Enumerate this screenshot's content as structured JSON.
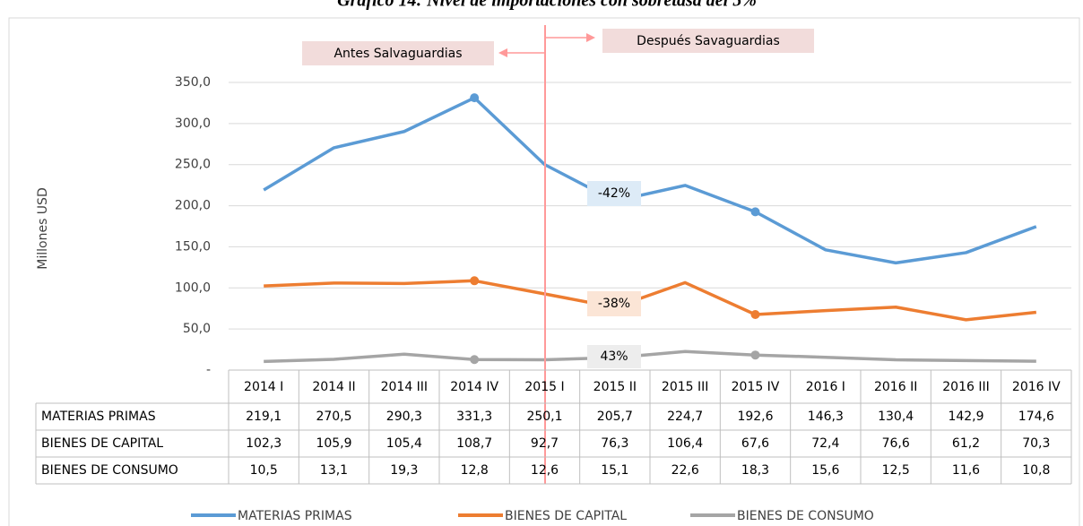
{
  "chart_data": {
    "type": "line",
    "title": "Gráfico 14: Nivel de importaciones con sobretasa del 5%",
    "y_label": "Millones USD",
    "categories": [
      "2014 I",
      "2014 II",
      "2014 III",
      "2014 IV",
      "2015 I",
      "2015 II",
      "2015 III",
      "2015 IV",
      "2016 I",
      "2016 II",
      "2016 III",
      "2016 IV"
    ],
    "series": [
      {
        "name": "MATERIAS PRIMAS",
        "color": "#5b9bd5",
        "values": [
          219.1,
          270.5,
          290.3,
          331.3,
          250.1,
          205.7,
          224.7,
          192.6,
          146.3,
          130.4,
          142.9,
          174.6
        ],
        "value_labels": [
          "219,1",
          "270,5",
          "290,3",
          "331,3",
          "250,1",
          "205,7",
          "224,7",
          "192,6",
          "146,3",
          "130,4",
          "142,9",
          "174,6"
        ]
      },
      {
        "name": "BIENES DE CAPITAL",
        "color": "#ed7d31",
        "values": [
          102.3,
          105.9,
          105.4,
          108.7,
          92.7,
          76.3,
          106.4,
          67.6,
          72.4,
          76.6,
          61.2,
          70.3
        ],
        "value_labels": [
          "102,3",
          "105,9",
          "105,4",
          "108,7",
          "92,7",
          "76,3",
          "106,4",
          "67,6",
          "72,4",
          "76,6",
          "61,2",
          "70,3"
        ]
      },
      {
        "name": "BIENES DE CONSUMO",
        "color": "#a5a5a5",
        "values": [
          10.5,
          13.1,
          19.3,
          12.8,
          12.6,
          15.1,
          22.6,
          18.3,
          15.6,
          12.5,
          11.6,
          10.8
        ],
        "value_labels": [
          "10,5",
          "13,1",
          "19,3",
          "12,8",
          "12,6",
          "15,1",
          "22,6",
          "18,3",
          "15,6",
          "12,5",
          "11,6",
          "10,8"
        ]
      }
    ],
    "ylim": [
      0,
      350
    ],
    "yticks": [
      {
        "value": 0,
        "label": "-"
      },
      {
        "value": 50,
        "label": "50,0"
      },
      {
        "value": 100,
        "label": "100,0"
      },
      {
        "value": 150,
        "label": "150,0"
      },
      {
        "value": 200,
        "label": "200,0"
      },
      {
        "value": 250,
        "label": "250,0"
      },
      {
        "value": 300,
        "label": "300,0"
      },
      {
        "value": 350,
        "label": "350,0"
      }
    ],
    "grid": true,
    "annotations": [
      "Antes Salvaguardias",
      "Después Savaguardias",
      "-42%",
      "-38%",
      "43%"
    ]
  }
}
